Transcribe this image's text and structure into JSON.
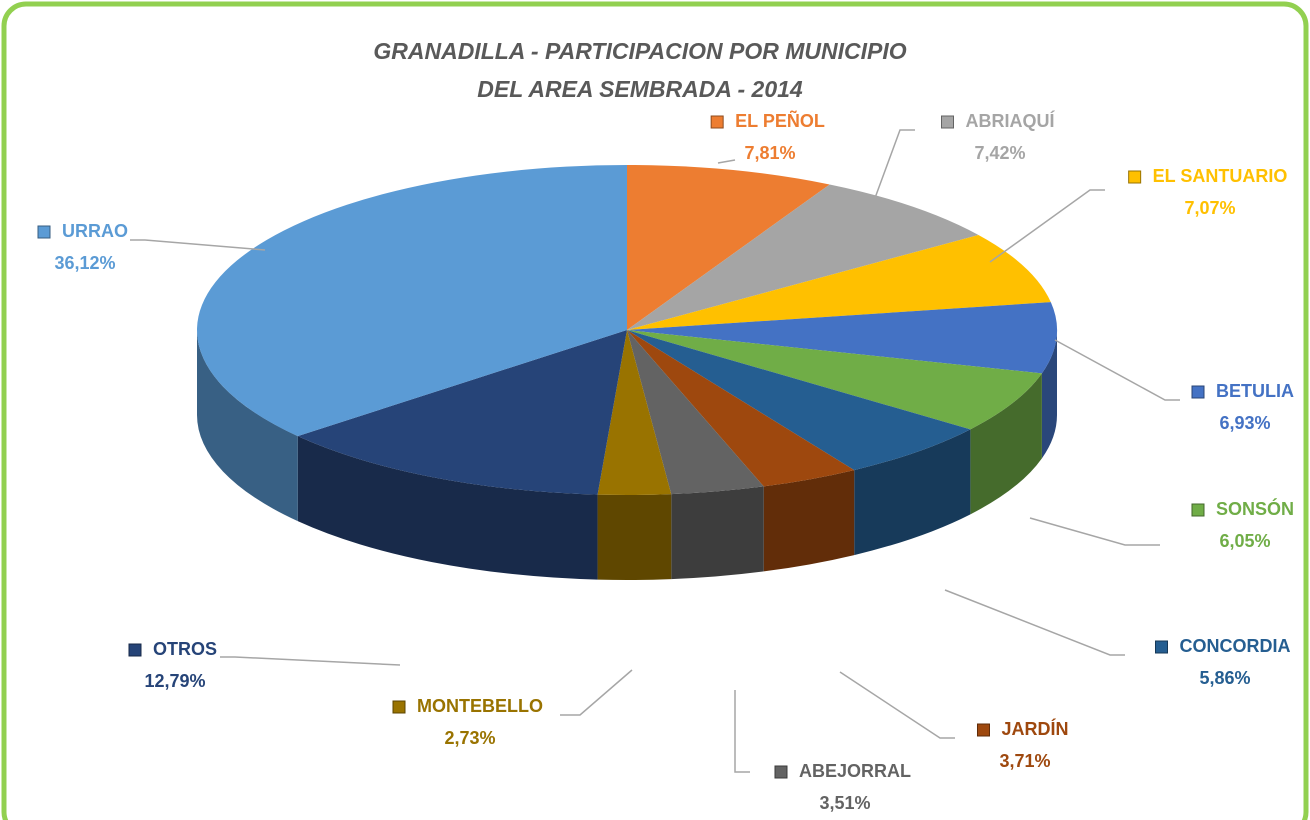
{
  "chart_data": {
    "type": "pie",
    "title": [
      "GRANADILLA - PARTICIPACION POR MUNICIPIO",
      "DEL AREA SEMBRADA - 2014"
    ],
    "categories": [
      "EL PEÑOL",
      "ABRIAQUÍ",
      "EL SANTUARIO",
      "BETULIA",
      "SONSÓN",
      "CONCORDIA",
      "JARDÍN",
      "ABEJORRAL",
      "MONTEBELLO",
      "OTROS",
      "URRAO"
    ],
    "values": [
      7.81,
      7.42,
      7.07,
      6.93,
      6.05,
      5.86,
      3.71,
      3.51,
      2.73,
      12.79,
      36.12
    ],
    "value_labels": [
      "7,81%",
      "7,42%",
      "7,07%",
      "6,93%",
      "6,05%",
      "5,86%",
      "3,71%",
      "3,51%",
      "2,73%",
      "12,79%",
      "36,12%"
    ],
    "colors": [
      "#ed7d31",
      "#a5a5a5",
      "#ffc000",
      "#4472c4",
      "#70ad47",
      "#255e91",
      "#9e480e",
      "#636363",
      "#997300",
      "#264478",
      "#5b9bd5"
    ]
  }
}
